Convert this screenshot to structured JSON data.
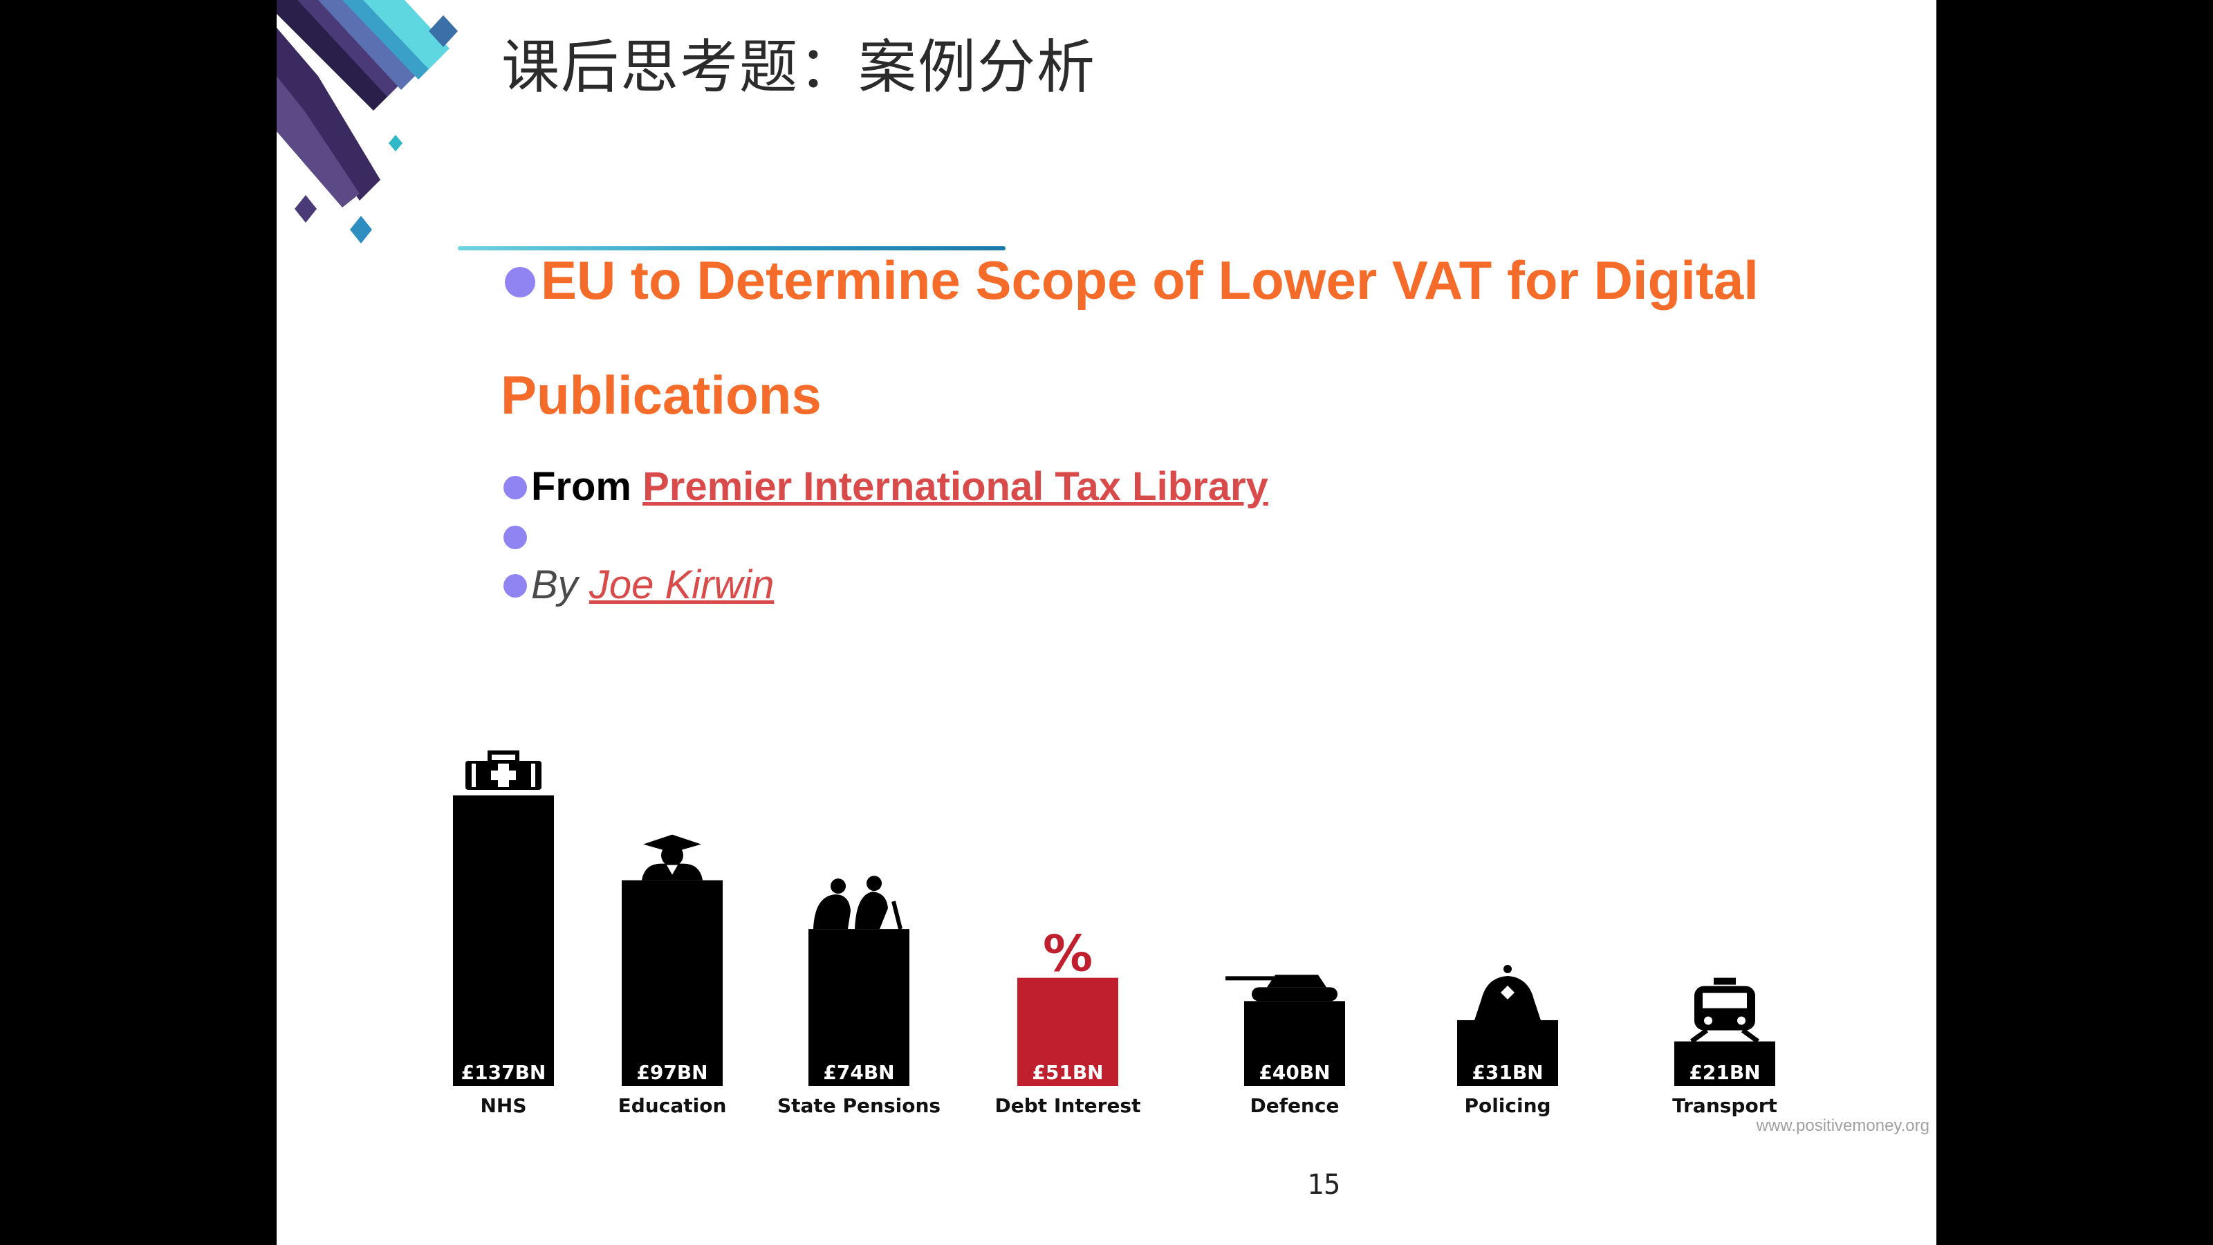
{
  "slide": {
    "title": "课后思考题：案例分析",
    "headline_line1": "EU to Determine Scope of Lower VAT for Digital",
    "headline_line2": "Publications",
    "from_label": "From ",
    "source_link": "Premier International Tax Library",
    "by_label": "By ",
    "author_link": "Joe Kirwin",
    "page_number": "15"
  },
  "chart_data": {
    "type": "bar",
    "categories": [
      "NHS",
      "Education",
      "State Pensions",
      "Debt Interest",
      "Defence",
      "Policing",
      "Transport"
    ],
    "values": [
      137,
      97,
      74,
      51,
      40,
      31,
      21
    ],
    "value_labels": [
      "£137BN",
      "£97BN",
      "£74BN",
      "£51BN",
      "£40BN",
      "£31BN",
      "£21BN"
    ],
    "unit": "BN",
    "icons": [
      "first-aid-kit-icon",
      "graduate-icon",
      "elderly-couple-icon",
      "percent-icon",
      "tank-icon",
      "police-helmet-icon",
      "train-icon"
    ],
    "colors": [
      "#000000",
      "#000000",
      "#000000",
      "#c0202e",
      "#000000",
      "#000000",
      "#000000"
    ],
    "source": "www.positivemoney.org",
    "ylim": [
      0,
      137
    ]
  },
  "colors": {
    "headline": "#f46b2a",
    "link": "#d94a4a",
    "bullet": "#8f84f2",
    "highlight_bar": "#c0202e"
  }
}
